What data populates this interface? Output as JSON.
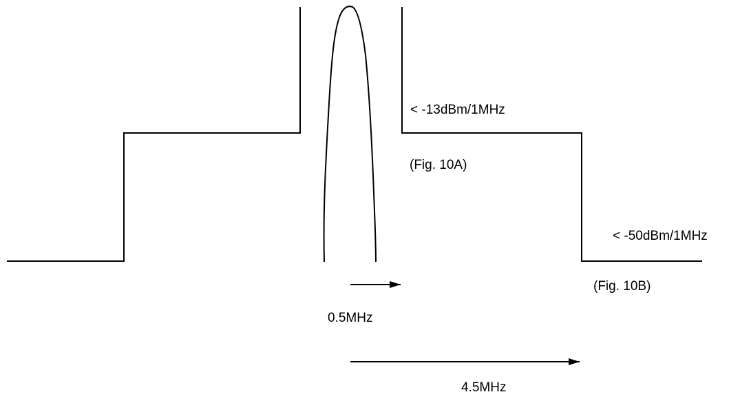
{
  "labels": {
    "limit_a": "< -13dBm/1MHz",
    "fig_a": "(Fig. 10A)",
    "limit_b": "< -50dBm/1MHz",
    "fig_b": "(Fig. 10B)",
    "offset_small": "0.5MHz",
    "offset_large": "4.5MHz"
  },
  "colors": {
    "stroke": "#000000",
    "background": "#ffffff"
  }
}
